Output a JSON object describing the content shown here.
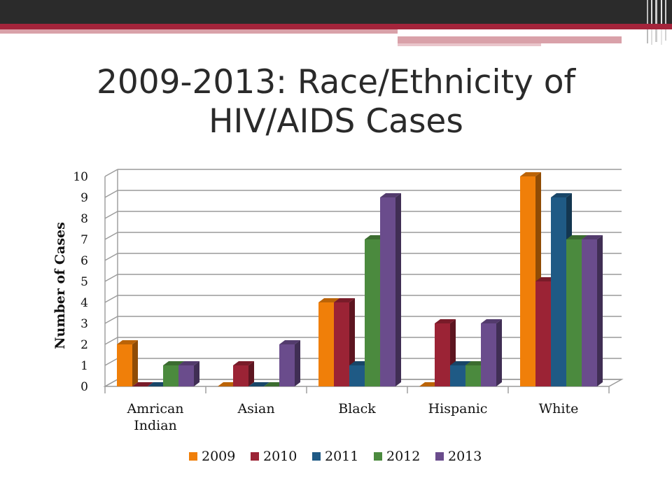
{
  "slide": {
    "title": "2009-2013: Race/Ethnicity of\nHIV/AIDS Cases"
  },
  "colors": {
    "topbar": "#2b2b2b",
    "accent_red": "#a4243b",
    "accent_pink": "#d9a1a9"
  },
  "chart_data": {
    "type": "bar",
    "title": "",
    "xlabel": "",
    "ylabel": "Number of Cases",
    "ylim": [
      0,
      10
    ],
    "yticks": [
      0,
      1,
      2,
      3,
      4,
      5,
      6,
      7,
      8,
      9,
      10
    ],
    "grid": true,
    "legend_position": "bottom",
    "categories": [
      "Amrican Indian",
      "Asian",
      "Black",
      "Hispanic",
      "White"
    ],
    "series": [
      {
        "name": "2009",
        "color": "#f07f09",
        "values": [
          2,
          0,
          4,
          0,
          10
        ]
      },
      {
        "name": "2010",
        "color": "#9b2335",
        "values": [
          0,
          1,
          4,
          3,
          5
        ]
      },
      {
        "name": "2011",
        "color": "#1f5a85",
        "values": [
          0,
          0,
          1,
          1,
          9
        ]
      },
      {
        "name": "2012",
        "color": "#4b8a3e",
        "values": [
          1,
          0,
          7,
          1,
          7
        ]
      },
      {
        "name": "2013",
        "color": "#6a4c8c",
        "values": [
          1,
          2,
          9,
          3,
          7
        ]
      }
    ]
  }
}
